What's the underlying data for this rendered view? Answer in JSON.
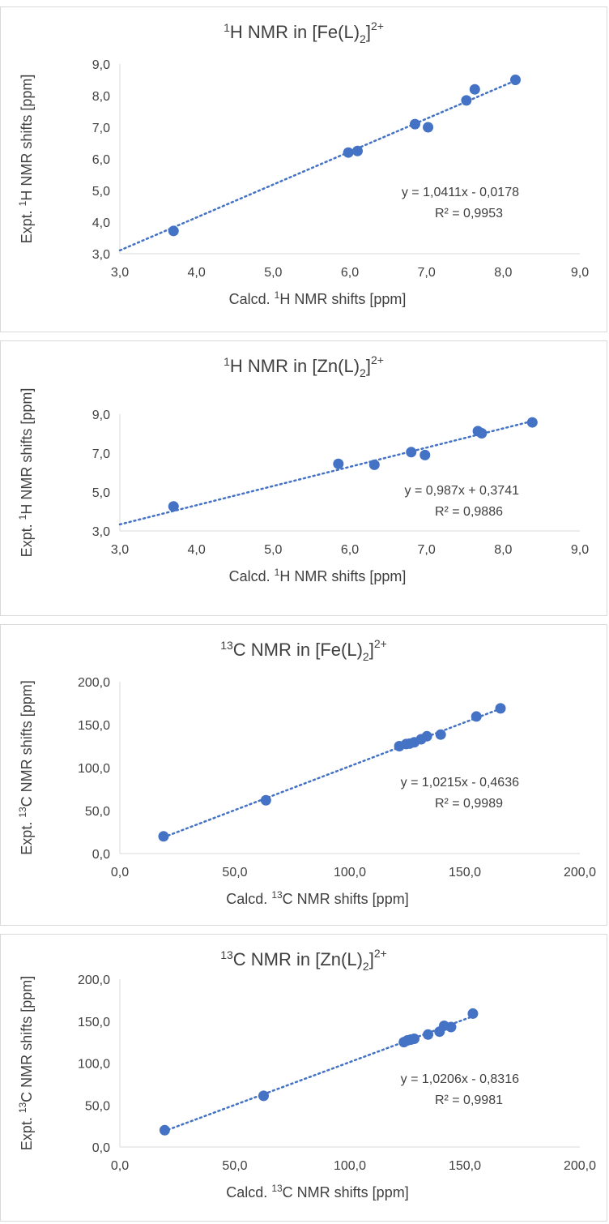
{
  "chart_data": [
    {
      "type": "scatter",
      "title": {
        "nucleus_mass": "1",
        "text_before": "H NMR in [Fe(L)",
        "sub": "2",
        "sup": "2+",
        "text_after": "]"
      },
      "xlabel": {
        "before": "Calcd. ",
        "sup": "1",
        "after": "H NMR shifts [ppm]"
      },
      "ylabel": {
        "before": "Expt. ",
        "sup": "1",
        "after": "H NMR shifts [ppm]"
      },
      "xlim": [
        3.0,
        9.0
      ],
      "ylim": [
        3.0,
        9.0
      ],
      "xticks": [
        "3,0",
        "4,0",
        "5,0",
        "6,0",
        "7,0",
        "8,0",
        "9,0"
      ],
      "yticks": [
        "3,0",
        "4,0",
        "5,0",
        "6,0",
        "7,0",
        "8,0",
        "9,0"
      ],
      "xtick_values": [
        3,
        4,
        5,
        6,
        7,
        8,
        9
      ],
      "ytick_values": [
        3,
        4,
        5,
        6,
        7,
        8,
        9
      ],
      "x": [
        3.7,
        5.98,
        6.1,
        6.85,
        7.02,
        7.52,
        7.63,
        8.16
      ],
      "y": [
        3.72,
        6.2,
        6.25,
        7.1,
        7.0,
        7.85,
        8.2,
        8.5
      ],
      "trendline": {
        "slope": 1.0411,
        "intercept": -0.0178,
        "x_range": [
          3.0,
          8.2
        ]
      },
      "equation": "y = 1,0411x - 0,0178",
      "r2": "R² = 0,9953",
      "color": "#4472c4"
    },
    {
      "type": "scatter",
      "title": {
        "nucleus_mass": "1",
        "text_before": "H NMR in [Zn(L)",
        "sub": "2",
        "sup": "2+",
        "text_after": "]"
      },
      "xlabel": {
        "before": "Calcd. ",
        "sup": "1",
        "after": "H NMR shifts [ppm]"
      },
      "ylabel": {
        "before": "Expt. ",
        "sup": "1",
        "after": "H NMR shifts [ppm]"
      },
      "xlim": [
        3.0,
        9.0
      ],
      "ylim": [
        3.0,
        9.0
      ],
      "xticks": [
        "3,0",
        "4,0",
        "5,0",
        "6,0",
        "7,0",
        "8,0",
        "9,0"
      ],
      "yticks": [
        "3,0",
        "5,0",
        "7,0",
        "9,0"
      ],
      "xtick_values": [
        3,
        4,
        5,
        6,
        7,
        8,
        9
      ],
      "ytick_values": [
        3,
        5,
        7,
        9
      ],
      "x": [
        3.7,
        5.85,
        6.32,
        6.8,
        6.98,
        7.67,
        7.72,
        8.38
      ],
      "y": [
        4.26,
        6.45,
        6.4,
        7.05,
        6.9,
        8.13,
        8.02,
        8.58
      ],
      "trendline": {
        "slope": 0.987,
        "intercept": 0.3741,
        "x_range": [
          3.0,
          8.4
        ]
      },
      "equation": "y = 0,987x + 0,3741",
      "r2": "R² = 0,9886",
      "color": "#4472c4"
    },
    {
      "type": "scatter",
      "title": {
        "nucleus_mass": "13",
        "text_before": "C NMR in [Fe(L)",
        "sub": "2",
        "sup": "2+",
        "text_after": "]"
      },
      "xlabel": {
        "before": "Calcd. ",
        "sup": "13",
        "after": "C NMR shifts [ppm]"
      },
      "ylabel": {
        "before": "Expt. ",
        "sup": "13",
        "after": "C NMR shifts [ppm]"
      },
      "xlim": [
        0.0,
        200.0
      ],
      "ylim": [
        0.0,
        200.0
      ],
      "xticks": [
        "0,0",
        "50,0",
        "100,0",
        "150,0",
        "200,0"
      ],
      "yticks": [
        "0,0",
        "50,0",
        "100,0",
        "150,0",
        "200,0"
      ],
      "xtick_values": [
        0,
        50,
        100,
        150,
        200
      ],
      "ytick_values": [
        0,
        50,
        100,
        150,
        200
      ],
      "x": [
        19.0,
        63.5,
        121.5,
        124.5,
        126.0,
        128.0,
        131.0,
        133.5,
        139.5,
        155.0,
        165.5
      ],
      "y": [
        20.0,
        62.0,
        125.0,
        127.5,
        128.0,
        129.5,
        133.0,
        136.5,
        138.5,
        159.5,
        169.0
      ],
      "trendline": {
        "slope": 1.0215,
        "intercept": -0.4636,
        "x_range": [
          19.0,
          167.0
        ]
      },
      "equation": "y = 1,0215x - 0,4636",
      "r2": "R² = 0,9989",
      "color": "#4472c4"
    },
    {
      "type": "scatter",
      "title": {
        "nucleus_mass": "13",
        "text_before": "C NMR in [Zn(L)",
        "sub": "2",
        "sup": "2+",
        "text_after": "]"
      },
      "xlabel": {
        "before": "Calcd. ",
        "sup": "13",
        "after": "C NMR shifts [ppm]"
      },
      "ylabel": {
        "before": "Expt. ",
        "sup": "13",
        "after": "C NMR shifts [ppm]"
      },
      "xlim": [
        0.0,
        200.0
      ],
      "ylim": [
        0.0,
        200.0
      ],
      "xticks": [
        "0,0",
        "50,0",
        "100,0",
        "150,0",
        "200,0"
      ],
      "yticks": [
        "0,0",
        "50,0",
        "100,0",
        "150,0",
        "200,0"
      ],
      "xtick_values": [
        0,
        50,
        100,
        150,
        200
      ],
      "ytick_values": [
        0,
        50,
        100,
        150,
        200
      ],
      "x": [
        19.5,
        62.5,
        123.5,
        125.0,
        126.5,
        128.0,
        134.0,
        139.0,
        141.0,
        144.0,
        153.5
      ],
      "y": [
        20.0,
        61.0,
        125.0,
        127.0,
        128.0,
        129.0,
        134.0,
        137.5,
        144.5,
        143.0,
        159.0
      ],
      "trendline": {
        "slope": 1.0206,
        "intercept": -0.8316,
        "x_range": [
          19.0,
          155.0
        ]
      },
      "equation": "y = 1,0206x - 0,8316",
      "r2": "R² = 0,9981",
      "color": "#4472c4"
    }
  ]
}
